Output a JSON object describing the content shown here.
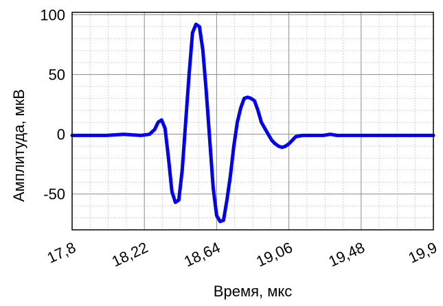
{
  "chart_data": {
    "type": "line",
    "title": "",
    "xlabel": "Время, мкс",
    "ylabel": "Амплитуда, мкВ",
    "xlim": [
      17.8,
      19.9
    ],
    "ylim": [
      -80,
      102
    ],
    "x_ticks": [
      17.8,
      18.22,
      18.64,
      19.06,
      19.48,
      19.9
    ],
    "x_tick_labels": [
      "17,8",
      "18,22",
      "18,64",
      "19,06",
      "19,48",
      "19,9"
    ],
    "y_ticks": [
      -50,
      0,
      50,
      100
    ],
    "y_tick_labels": [
      "-50",
      "0",
      "50",
      "100"
    ],
    "grid": true,
    "legend": "none",
    "series": [
      {
        "color": "#0000ff",
        "x": [
          17.8,
          17.9,
          18.0,
          18.1,
          18.2,
          18.25,
          18.28,
          18.3,
          18.32,
          18.34,
          18.36,
          18.38,
          18.4,
          18.42,
          18.44,
          18.46,
          18.48,
          18.5,
          18.52,
          18.54,
          18.56,
          18.58,
          18.6,
          18.61,
          18.62,
          18.64,
          18.66,
          18.68,
          18.7,
          18.72,
          18.74,
          18.76,
          18.78,
          18.8,
          18.82,
          18.84,
          18.86,
          18.88,
          18.9,
          18.92,
          18.94,
          18.96,
          18.98,
          19.0,
          19.02,
          19.04,
          19.06,
          19.08,
          19.1,
          19.14,
          19.18,
          19.22,
          19.26,
          19.3,
          19.34,
          19.38,
          19.42,
          19.48,
          19.6,
          19.7,
          19.8,
          19.9
        ],
        "y": [
          -1,
          -1,
          -1,
          0,
          -1,
          0,
          4,
          10,
          12,
          5,
          -20,
          -48,
          -57,
          -55,
          -30,
          10,
          50,
          85,
          92,
          90,
          70,
          35,
          -5,
          -25,
          -45,
          -68,
          -73,
          -72,
          -55,
          -35,
          -10,
          10,
          22,
          30,
          31,
          30,
          28,
          20,
          10,
          5,
          0,
          -5,
          -8,
          -10,
          -11,
          -10,
          -8,
          -5,
          -2,
          -1,
          -1,
          -1,
          -1,
          0,
          -1,
          -1,
          -1,
          -1,
          -1,
          -1,
          -1,
          -1
        ]
      }
    ]
  }
}
